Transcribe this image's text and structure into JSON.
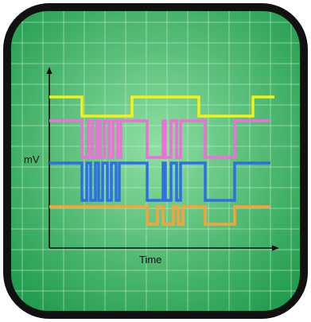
{
  "labels": {
    "y_axis": "mV",
    "x_axis": "Time"
  },
  "colors": {
    "bezel": "#111111",
    "screen_light": "#8fe0a2",
    "screen_dark": "#1f9a4d",
    "grid": "#c9f5d2",
    "axis": "#111111"
  },
  "signals": [
    {
      "name": "",
      "color": "#f2f21a"
    },
    {
      "name": "",
      "color": "#ee6fd8"
    },
    {
      "name": "",
      "color": "#2f6fe6"
    },
    {
      "name": "",
      "color": "#f7a23a"
    }
  ]
}
